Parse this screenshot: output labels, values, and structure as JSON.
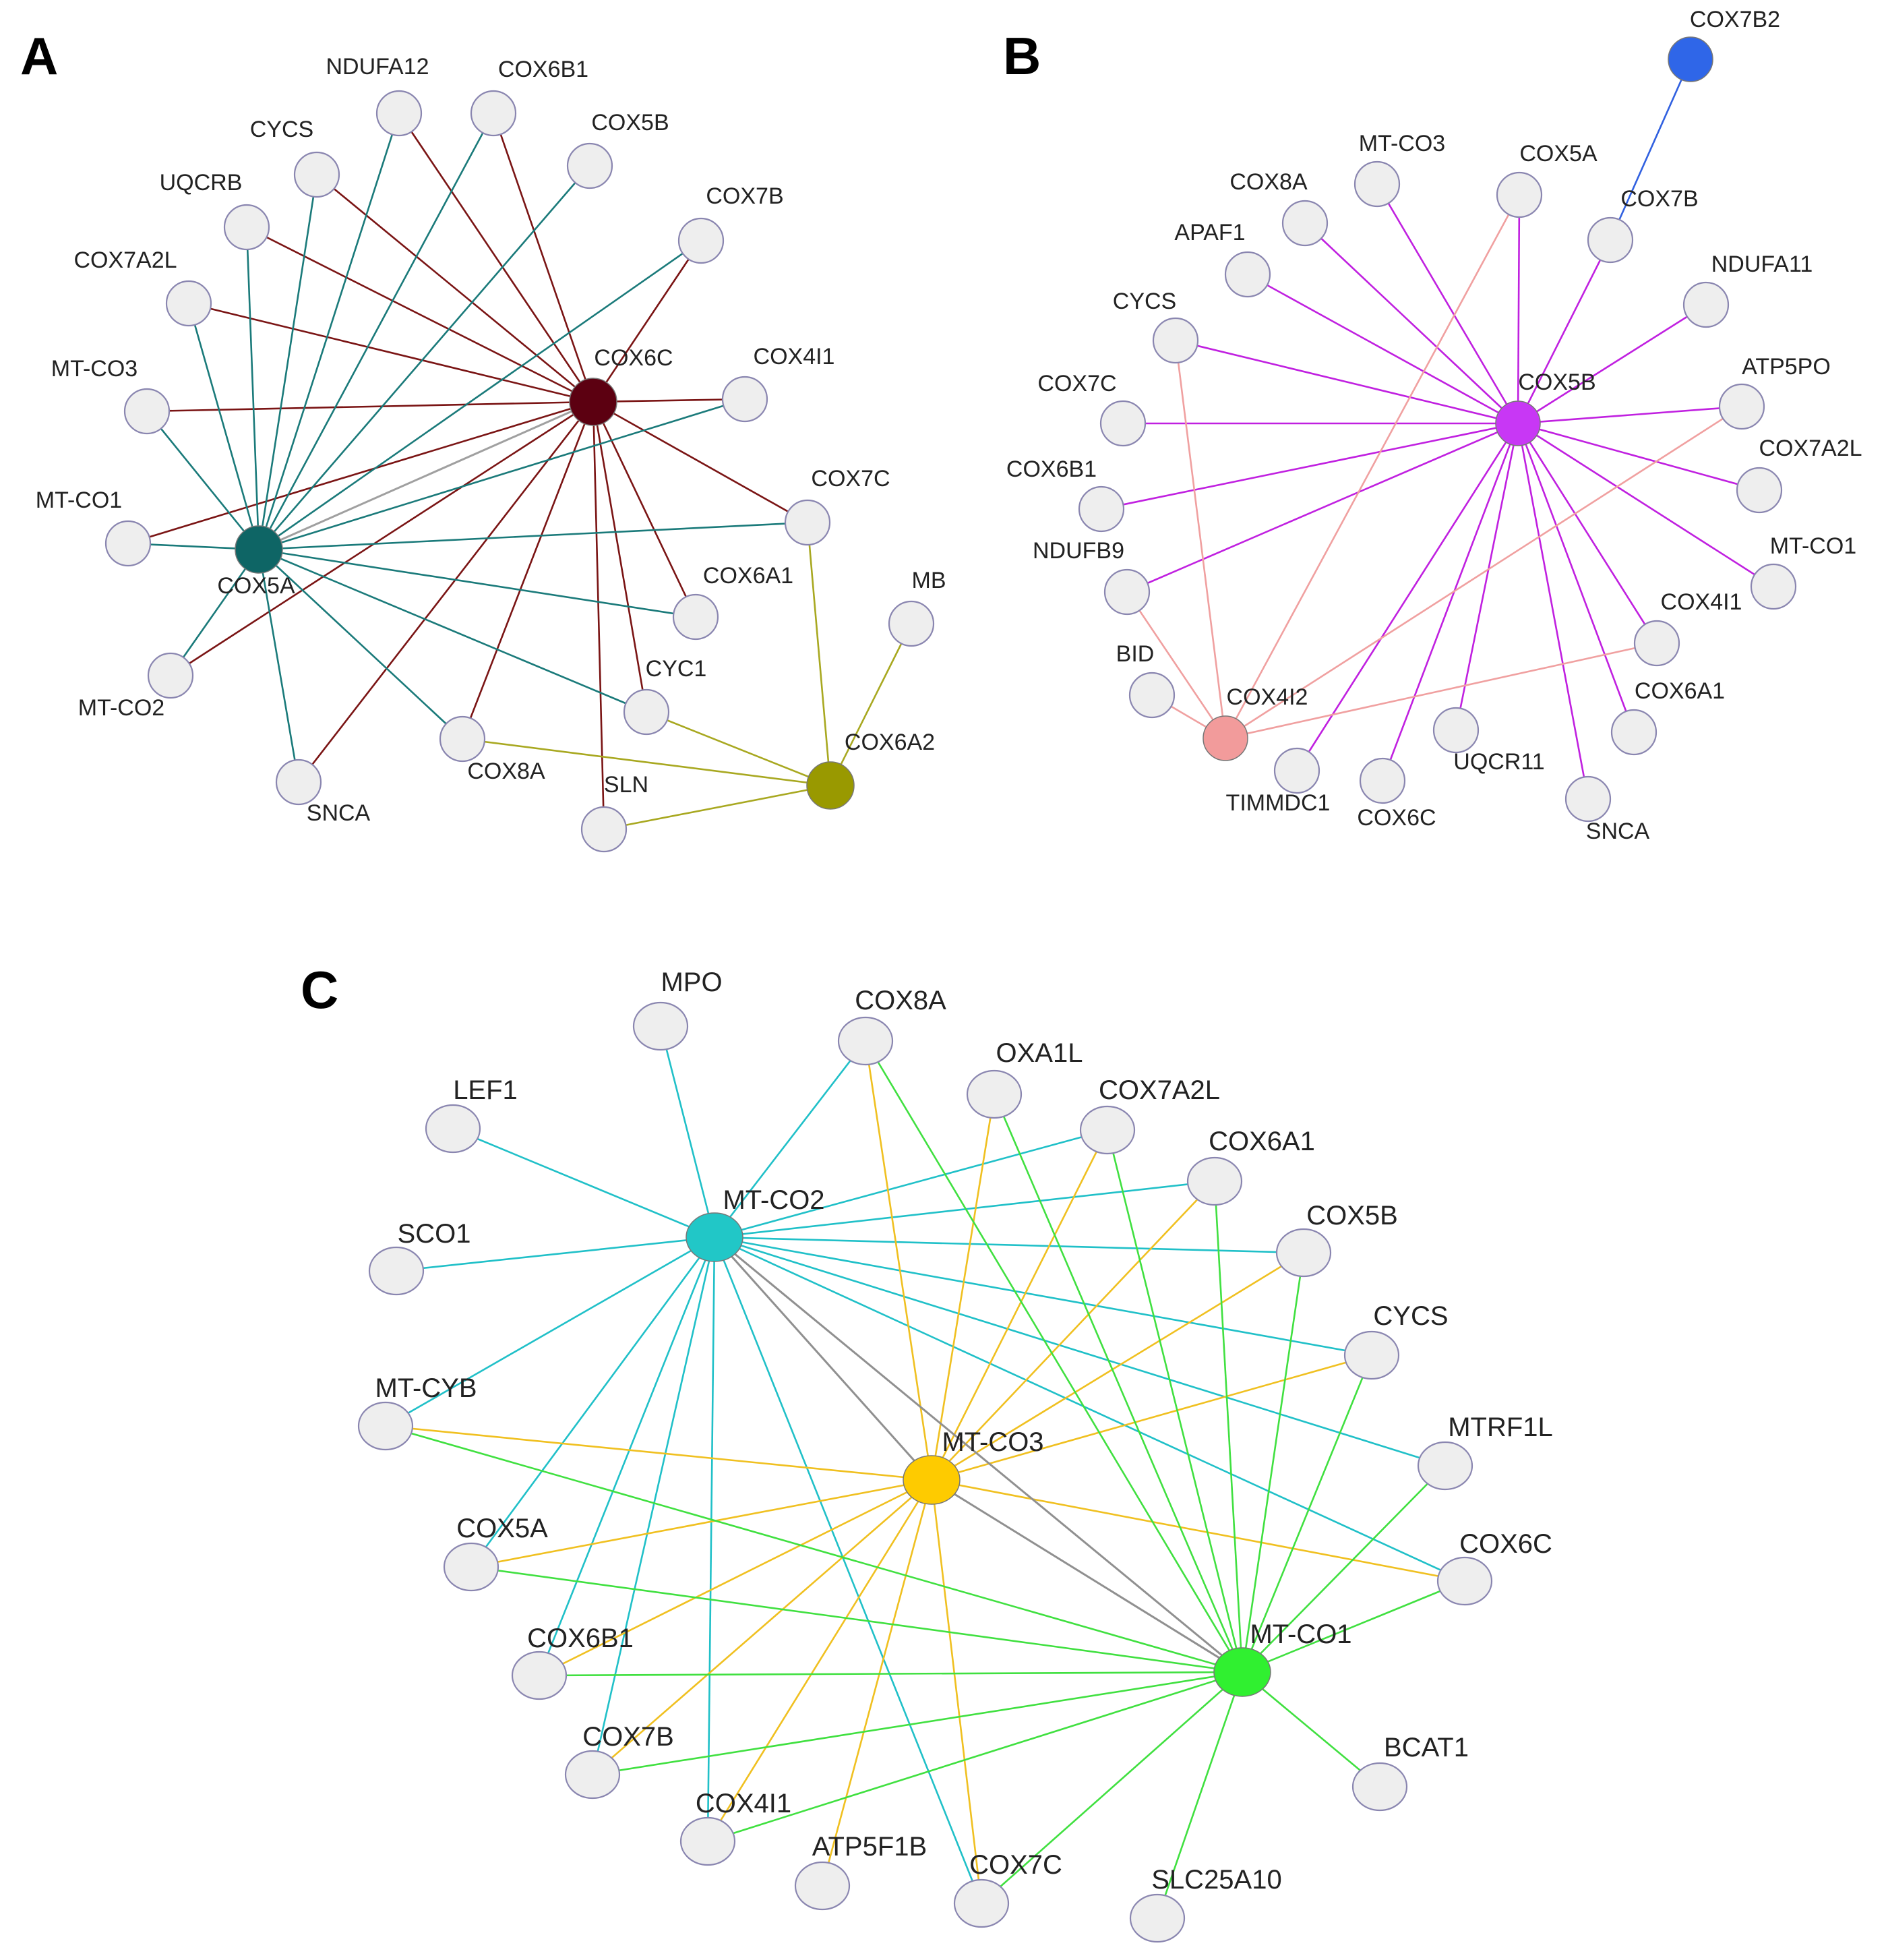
{
  "figure": {
    "panels": [
      {
        "letter": "A",
        "hubs": {
          "COX6C": {
            "label": "COX6C",
            "color": "#5c0011"
          },
          "COX5A": {
            "label": "COX5A",
            "color": "#0e6565"
          },
          "COX6A2": {
            "label": "COX6A2",
            "color": "#999900"
          }
        },
        "edge_colors": {
          "COX6C": "#7a1414",
          "COX5A": "#1a7a7a",
          "COX6A2": "#a8a820",
          "hub-hub": "#a0a0a0"
        },
        "nodes": [
          "NDUFA12",
          "COX6B1",
          "CYCS",
          "COX5B",
          "UQCRB",
          "COX7B",
          "COX7A2L",
          "COX4I1",
          "MT-CO3",
          "COX7C",
          "MT-CO1",
          "MB",
          "COX6A1",
          "CYC1",
          "MT-CO2",
          "COX8A",
          "SLN",
          "SNCA"
        ]
      },
      {
        "letter": "B",
        "hubs": {
          "COX5B": {
            "label": "COX5B",
            "color": "#c837f5"
          },
          "COX4I2": {
            "label": "COX4I2",
            "color": "#f29b9b"
          },
          "COX7B2": {
            "label": "COX7B2",
            "color": "#2f66e8"
          }
        },
        "edge_colors": {
          "COX5B": "#c020e0",
          "COX4I2": "#f0a0a0",
          "COX7B2": "#3060e0"
        },
        "nodes": [
          "MT-CO3",
          "COX5A",
          "COX8A",
          "COX7B",
          "APAF1",
          "NDUFA11",
          "CYCS",
          "ATP5PO",
          "COX7C",
          "COX7A2L",
          "COX6B1",
          "MT-CO1",
          "NDUFB9",
          "COX4I1",
          "BID",
          "COX6A1",
          "UQCR11",
          "TIMMDC1",
          "COX6C",
          "SNCA"
        ]
      },
      {
        "letter": "C",
        "hubs": {
          "MT-CO2": {
            "label": "MT-CO2",
            "color": "#21c7c7"
          },
          "MT-CO3": {
            "label": "MT-CO3",
            "color": "#fecb00"
          },
          "MT-CO1": {
            "label": "MT-CO1",
            "color": "#30f030"
          }
        },
        "edge_colors": {
          "MT-CO2": "#20c0c8",
          "MT-CO3": "#f0c020",
          "MT-CO1": "#40e040",
          "hub-hub": "#909090"
        },
        "nodes": [
          "MPO",
          "COX8A",
          "OXA1L",
          "LEF1",
          "COX7A2L",
          "COX6A1",
          "SCO1",
          "COX5B",
          "CYCS",
          "MT-CYB",
          "MTRF1L",
          "COX5A",
          "COX6C",
          "COX6B1",
          "BCAT1",
          "COX7B",
          "COX4I1",
          "ATP5F1B",
          "COX7C",
          "SLC25A10"
        ]
      }
    ]
  }
}
